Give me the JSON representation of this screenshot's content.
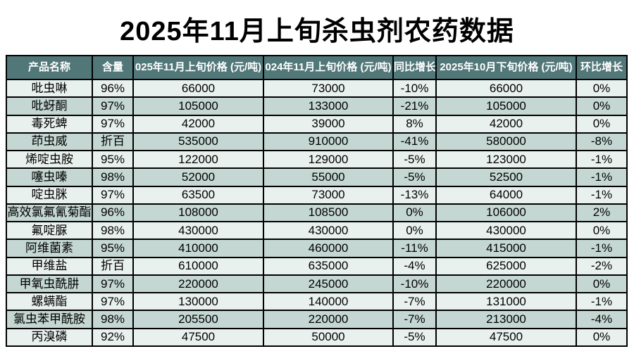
{
  "title": "2025年11月上旬杀虫剂农药数据",
  "colors": {
    "header_bg": "#527779",
    "row_light": "#e9f1ee",
    "row_dark": "#c4d7d2",
    "border": "#000000"
  },
  "table": {
    "headers": [
      "产品名称",
      "含量",
      "025年11月上旬价格 (元/吨)",
      "024年11月上旬价格 (元/吨)",
      "同比增长",
      "2025年10月下旬价格 (元/吨)",
      "环比增长"
    ],
    "rows": [
      [
        "吡虫啉",
        "96%",
        "66000",
        "73000",
        "-10%",
        "66000",
        "0%"
      ],
      [
        "吡蚜酮",
        "97%",
        "105000",
        "133000",
        "-21%",
        "105000",
        "0%"
      ],
      [
        "毒死蜱",
        "97%",
        "42000",
        "39000",
        "8%",
        "42000",
        "0%"
      ],
      [
        "茚虫威",
        "折百",
        "535000",
        "910000",
        "-41%",
        "580000",
        "-8%"
      ],
      [
        "烯啶虫胺",
        "95%",
        "122000",
        "129000",
        "-5%",
        "123000",
        "-1%"
      ],
      [
        "噻虫嗪",
        "98%",
        "52000",
        "55000",
        "-5%",
        "52500",
        "-1%"
      ],
      [
        "啶虫脒",
        "97%",
        "63500",
        "73000",
        "-13%",
        "64000",
        "-1%"
      ],
      [
        "高效氯氟氰菊酯",
        "96%",
        "108000",
        "108500",
        "0%",
        "106000",
        "2%"
      ],
      [
        "氟啶脲",
        "98%",
        "430000",
        "430000",
        "0%",
        "430000",
        "0%"
      ],
      [
        "阿维菌素",
        "95%",
        "410000",
        "460000",
        "-11%",
        "415000",
        "-1%"
      ],
      [
        "甲维盐",
        "折百",
        "610000",
        "635000",
        "-4%",
        "625000",
        "-2%"
      ],
      [
        "甲氧虫酰肼",
        "97%",
        "220000",
        "245000",
        "-10%",
        "220000",
        "0%"
      ],
      [
        "螺螨酯",
        "97%",
        "130000",
        "140000",
        "-7%",
        "131000",
        "-1%"
      ],
      [
        "氯虫苯甲酰胺",
        "98%",
        "205500",
        "220000",
        "-7%",
        "213000",
        "-4%"
      ],
      [
        "丙溴磷",
        "92%",
        "47500",
        "50000",
        "-5%",
        "47500",
        "0%"
      ]
    ]
  }
}
